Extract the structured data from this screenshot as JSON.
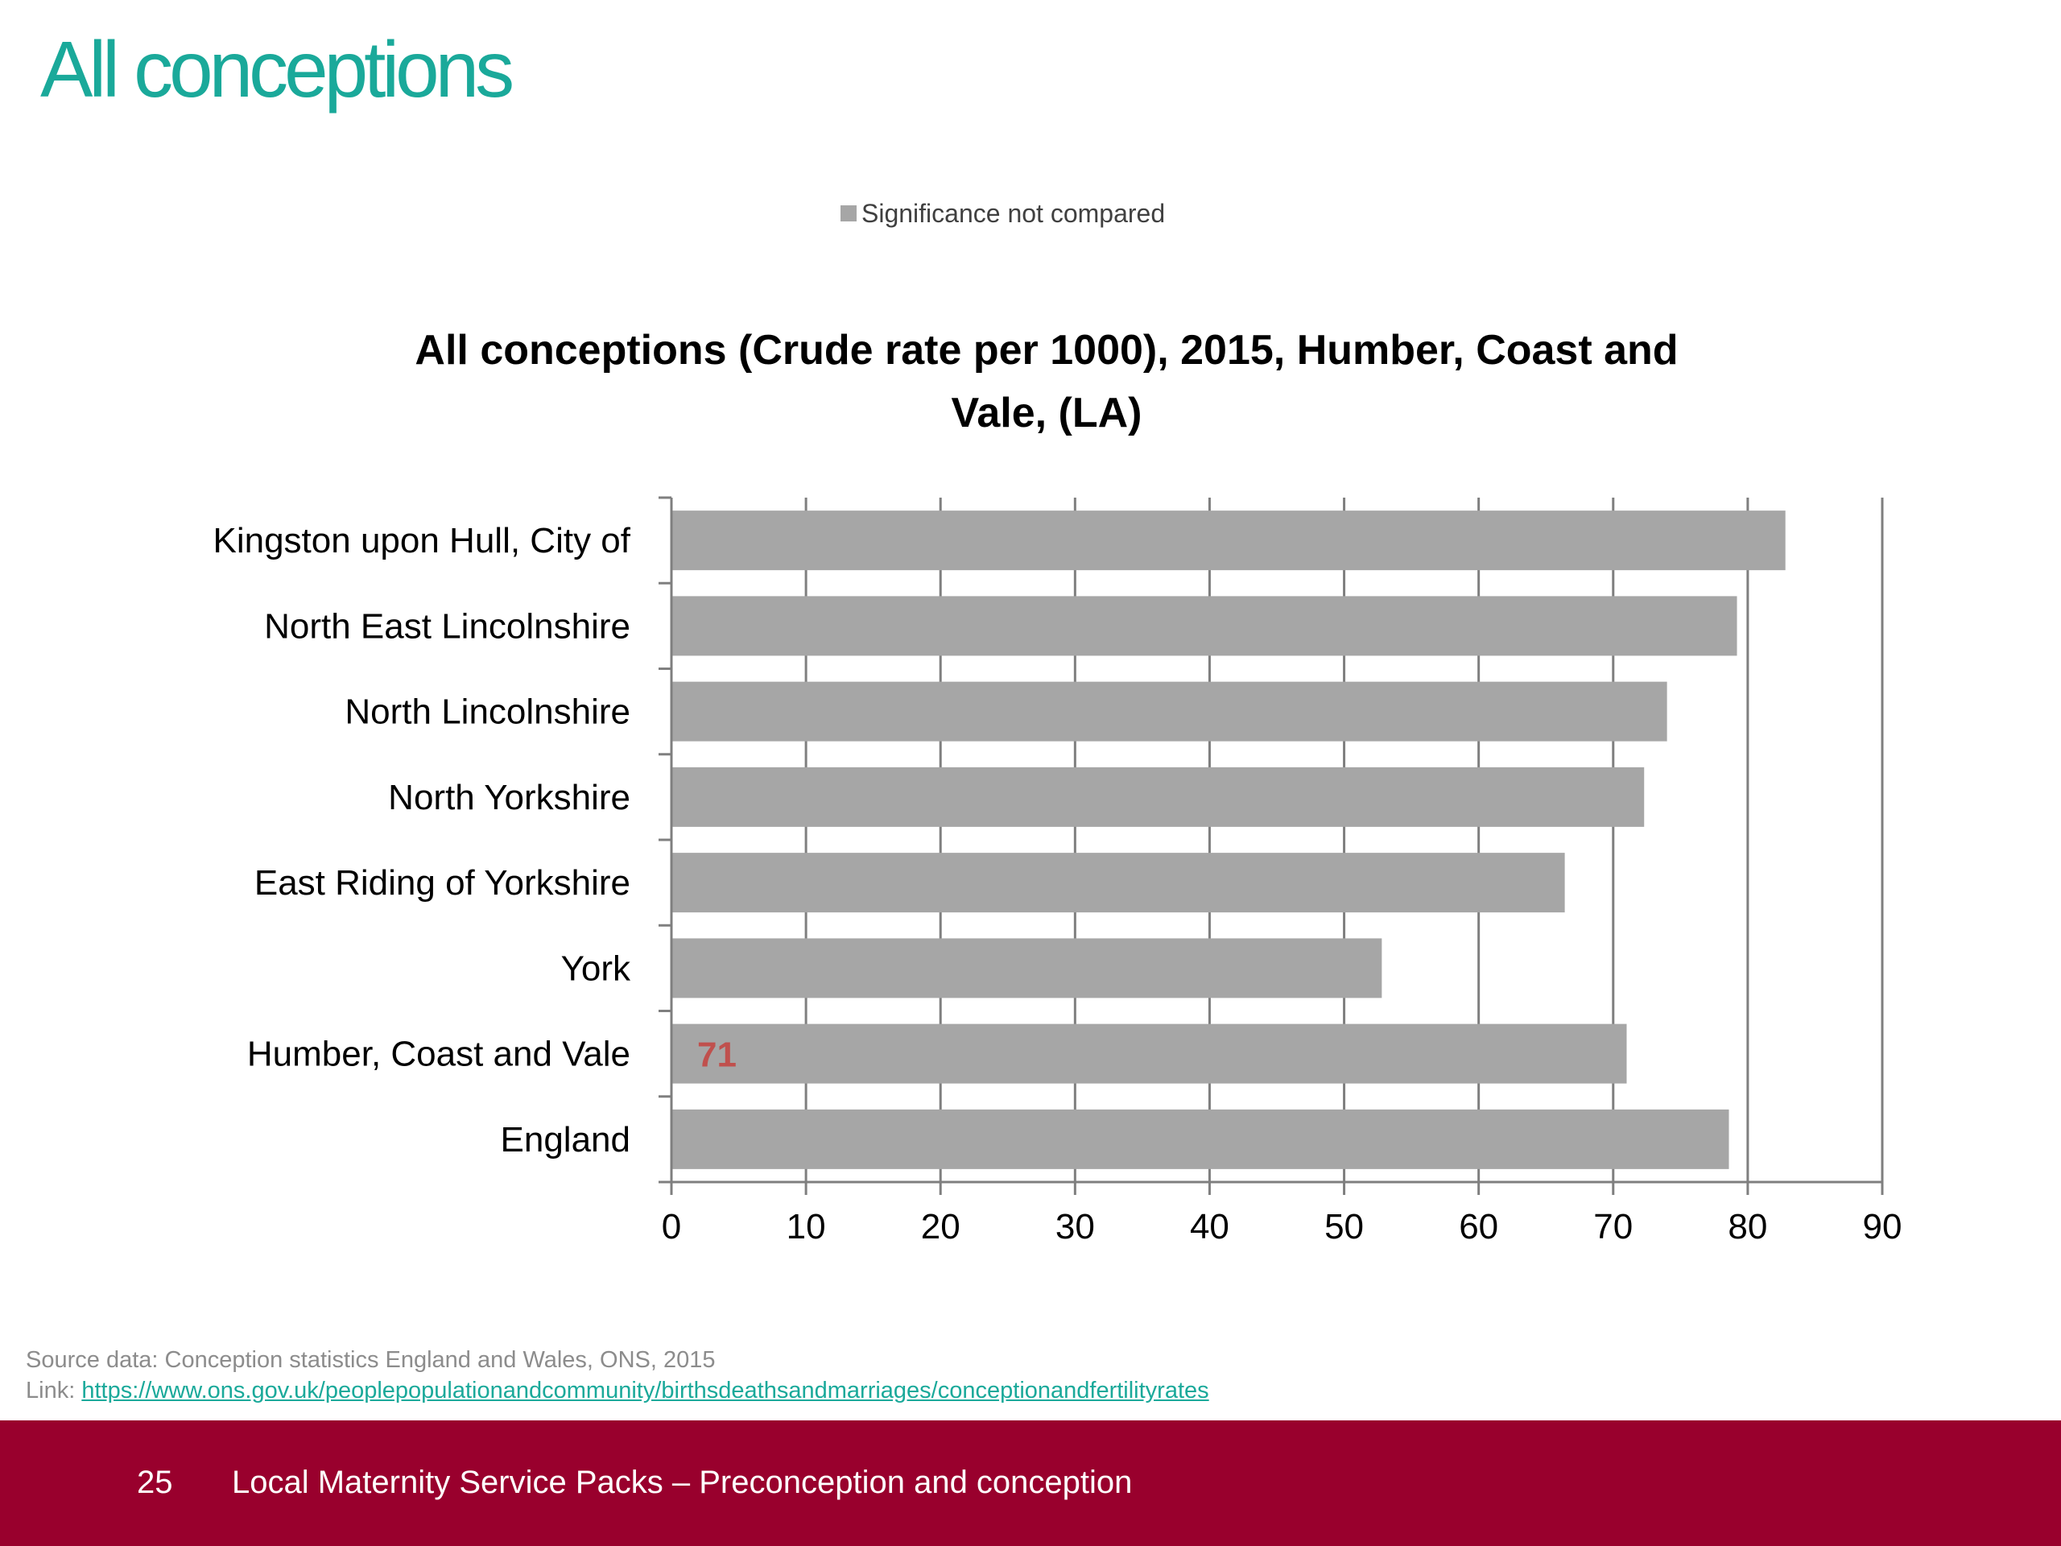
{
  "slide": {
    "title": "All conceptions"
  },
  "chart_data": {
    "type": "bar",
    "orientation": "horizontal",
    "title": "All conceptions (Crude rate per 1000), 2015, Humber, Coast and Vale, (LA)",
    "title_lines": [
      "All conceptions (Crude rate per 1000), 2015, Humber, Coast and",
      "Vale, (LA)"
    ],
    "legend": {
      "position": "top",
      "entries": [
        {
          "label": "Significance not compared",
          "color": "#a6a6a6"
        }
      ]
    },
    "categories": [
      "Kingston upon Hull, City of",
      "North East Lincolnshire",
      "North Lincolnshire",
      "North Yorkshire",
      "East Riding of Yorkshire",
      "York",
      "Humber, Coast and Vale",
      "England"
    ],
    "values": [
      82.8,
      79.2,
      74.0,
      72.3,
      66.4,
      52.8,
      71.0,
      78.6
    ],
    "bar_color": "#a6a6a6",
    "annotation": {
      "category": "Humber, Coast and Vale",
      "text": "71",
      "color": "#c0504d"
    },
    "xlim": [
      0,
      90
    ],
    "xticks": [
      0,
      10,
      20,
      30,
      40,
      50,
      60,
      70,
      80,
      90
    ],
    "grid": "vertical"
  },
  "source": {
    "line1": "Source data: Conception statistics England and Wales, ONS, 2015",
    "link_prefix": "Link: ",
    "link_url": "https://www.ons.gov.uk/peoplepopulationandcommunity/birthsdeathsandmarriages/conceptionandfertilityrates"
  },
  "footer": {
    "page_number": "25",
    "title": "Local Maternity Service Packs – Preconception and conception"
  }
}
